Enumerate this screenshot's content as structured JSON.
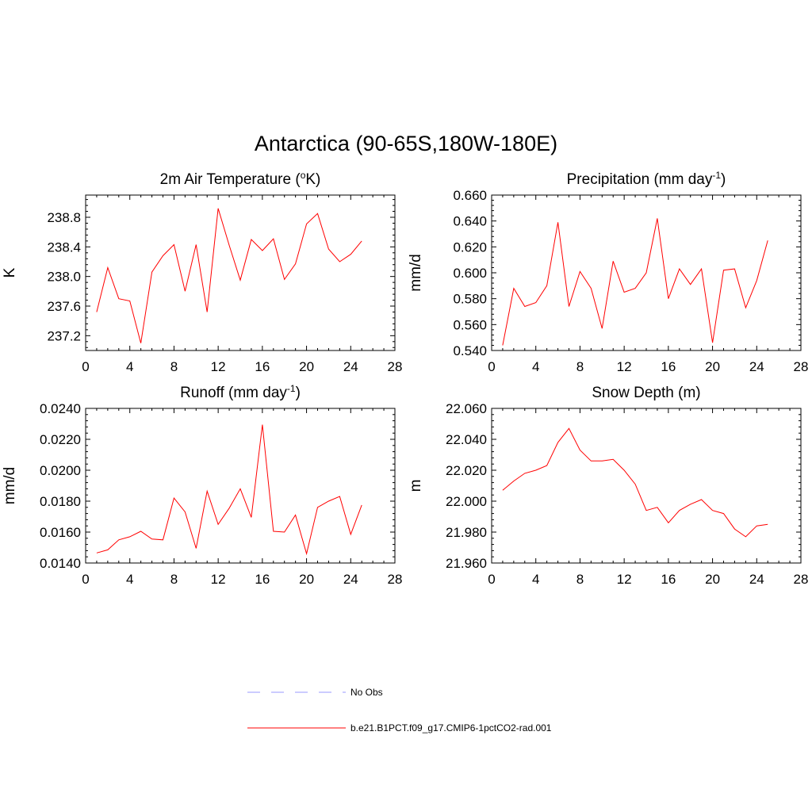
{
  "figure": {
    "title": "Antarctica (90-65S,180W-180E)"
  },
  "legend": {
    "placement": "bottom-center",
    "entries": [
      {
        "label": "No Obs",
        "color": "#9999ff",
        "style": "dashed"
      },
      {
        "label": "b.e21.B1PCT.f09_g17.CMIP6-1pctCO2-rad.001",
        "color": "#ff0000",
        "style": "solid"
      }
    ]
  },
  "chart_data": [
    {
      "type": "line",
      "title": "2m Air Temperature (°K)",
      "title_parts": {
        "pre": "2m Air Temperature (",
        "sup": "o",
        "post": "K)"
      },
      "ylabel": "K",
      "xlim": [
        0,
        28
      ],
      "ylim": [
        237.0,
        239.1
      ],
      "xticks": [
        "0",
        "4",
        "8",
        "12",
        "16",
        "20",
        "24",
        "28"
      ],
      "yticks": [
        "237.2",
        "237.6",
        "238.0",
        "238.4",
        "238.8"
      ],
      "ytick_values": [
        237.2,
        237.6,
        238.0,
        238.4,
        238.8
      ],
      "series": [
        {
          "color": "#ff0000",
          "x": [
            1,
            2,
            3,
            4,
            5,
            6,
            7,
            8,
            9,
            10,
            11,
            12,
            13,
            14,
            15,
            16,
            17,
            18,
            19,
            20,
            21,
            22,
            23,
            24,
            25
          ],
          "values": [
            237.52,
            238.12,
            237.7,
            237.67,
            237.1,
            238.06,
            238.28,
            238.43,
            237.8,
            238.43,
            237.52,
            238.92,
            238.42,
            237.95,
            238.5,
            238.35,
            238.51,
            237.96,
            238.17,
            238.71,
            238.85,
            238.37,
            238.2,
            238.3,
            238.48
          ]
        }
      ]
    },
    {
      "type": "line",
      "title": "Precipitation (mm day-1)",
      "title_parts": {
        "pre": "Precipitation (mm day",
        "sup": "-1",
        "post": ")"
      },
      "ylabel": "mm/d",
      "xlim": [
        0,
        28
      ],
      "ylim": [
        0.54,
        0.66
      ],
      "xticks": [
        "0",
        "4",
        "8",
        "12",
        "16",
        "20",
        "24",
        "28"
      ],
      "yticks": [
        "0.540",
        "0.560",
        "0.580",
        "0.600",
        "0.620",
        "0.640",
        "0.660"
      ],
      "ytick_values": [
        0.54,
        0.56,
        0.58,
        0.6,
        0.62,
        0.64,
        0.66
      ],
      "series": [
        {
          "color": "#ff0000",
          "x": [
            1,
            2,
            3,
            4,
            5,
            6,
            7,
            8,
            9,
            10,
            11,
            12,
            13,
            14,
            15,
            16,
            17,
            18,
            19,
            20,
            21,
            22,
            23,
            24,
            25
          ],
          "values": [
            0.544,
            0.588,
            0.574,
            0.577,
            0.59,
            0.639,
            0.574,
            0.601,
            0.588,
            0.557,
            0.609,
            0.585,
            0.588,
            0.6,
            0.642,
            0.58,
            0.603,
            0.591,
            0.603,
            0.546,
            0.602,
            0.603,
            0.573,
            0.594,
            0.625
          ]
        }
      ]
    },
    {
      "type": "line",
      "title": "Runoff (mm day-1)",
      "title_parts": {
        "pre": "Runoff (mm day",
        "sup": "-1",
        "post": ")"
      },
      "ylabel": "mm/d",
      "xlim": [
        0,
        28
      ],
      "ylim": [
        0.014,
        0.024
      ],
      "xticks": [
        "0",
        "4",
        "8",
        "12",
        "16",
        "20",
        "24",
        "28"
      ],
      "yticks": [
        "0.0140",
        "0.0160",
        "0.0180",
        "0.0200",
        "0.0220",
        "0.0240"
      ],
      "ytick_values": [
        0.014,
        0.016,
        0.018,
        0.02,
        0.022,
        0.024
      ],
      "series": [
        {
          "color": "#ff0000",
          "x": [
            1,
            2,
            3,
            4,
            5,
            6,
            7,
            8,
            9,
            10,
            11,
            12,
            13,
            14,
            15,
            16,
            17,
            18,
            19,
            20,
            21,
            22,
            23,
            24,
            25
          ],
          "values": [
            0.01465,
            0.01485,
            0.0155,
            0.0157,
            0.01605,
            0.01555,
            0.0155,
            0.0182,
            0.0173,
            0.01495,
            0.01865,
            0.0165,
            0.01755,
            0.0188,
            0.01695,
            0.02295,
            0.01605,
            0.016,
            0.0171,
            0.0146,
            0.0176,
            0.018,
            0.0183,
            0.01585,
            0.01775
          ]
        }
      ]
    },
    {
      "type": "line",
      "title": "Snow Depth (m)",
      "title_parts": {
        "pre": "Snow Depth (m)",
        "sup": "",
        "post": ""
      },
      "ylabel": "m",
      "xlim": [
        0,
        28
      ],
      "ylim": [
        21.96,
        22.06
      ],
      "xticks": [
        "0",
        "4",
        "8",
        "12",
        "16",
        "20",
        "24",
        "28"
      ],
      "yticks": [
        "21.960",
        "21.980",
        "22.000",
        "22.020",
        "22.040",
        "22.060"
      ],
      "ytick_values": [
        21.96,
        21.98,
        22.0,
        22.02,
        22.04,
        22.06
      ],
      "series": [
        {
          "color": "#ff0000",
          "x": [
            1,
            2,
            3,
            4,
            5,
            6,
            7,
            8,
            9,
            10,
            11,
            12,
            13,
            14,
            15,
            16,
            17,
            18,
            19,
            20,
            21,
            22,
            23,
            24,
            25
          ],
          "values": [
            22.007,
            22.013,
            22.018,
            22.02,
            22.023,
            22.038,
            22.047,
            22.033,
            22.026,
            22.026,
            22.027,
            22.02,
            22.011,
            21.994,
            21.996,
            21.986,
            21.994,
            21.998,
            22.001,
            21.994,
            21.992,
            21.982,
            21.977,
            21.984,
            21.985
          ]
        }
      ]
    }
  ]
}
